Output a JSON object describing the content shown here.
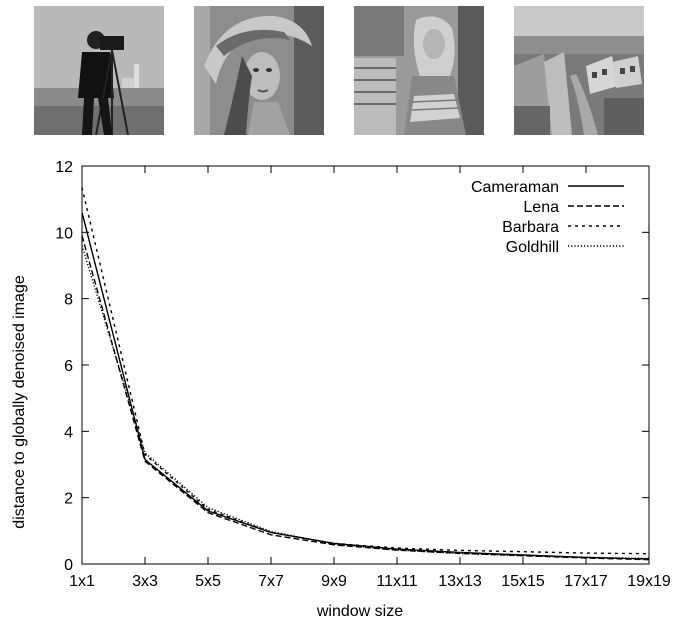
{
  "images": [
    {
      "name": "Cameraman"
    },
    {
      "name": "Lena"
    },
    {
      "name": "Barbara"
    },
    {
      "name": "Goldhill"
    }
  ],
  "chart_data": {
    "type": "line",
    "x": [
      "1x1",
      "3x3",
      "5x5",
      "7x7",
      "9x9",
      "11x11",
      "13x13",
      "15x15",
      "17x17",
      "19x19"
    ],
    "xlabel": "window size",
    "ylabel": "distance to globally denoised image",
    "ylim": [
      0,
      12
    ],
    "yticks": [
      "0",
      "2",
      "4",
      "6",
      "8",
      "10",
      "12"
    ],
    "legend_position": "top-right",
    "grid": false,
    "series": [
      {
        "name": "Cameraman",
        "dash": "solid",
        "values": [
          10.6,
          3.15,
          1.6,
          0.95,
          0.62,
          0.45,
          0.35,
          0.27,
          0.2,
          0.15
        ]
      },
      {
        "name": "Lena",
        "dash": "dashed",
        "values": [
          9.9,
          3.1,
          1.55,
          0.88,
          0.58,
          0.42,
          0.32,
          0.25,
          0.18,
          0.13
        ]
      },
      {
        "name": "Barbara",
        "dash": "short-dashed",
        "values": [
          11.35,
          3.3,
          1.65,
          0.95,
          0.62,
          0.48,
          0.41,
          0.37,
          0.33,
          0.31
        ]
      },
      {
        "name": "Goldhill",
        "dash": "dotted",
        "values": [
          9.6,
          3.35,
          1.7,
          0.98,
          0.6,
          0.42,
          0.32,
          0.25,
          0.2,
          0.17
        ]
      }
    ]
  }
}
